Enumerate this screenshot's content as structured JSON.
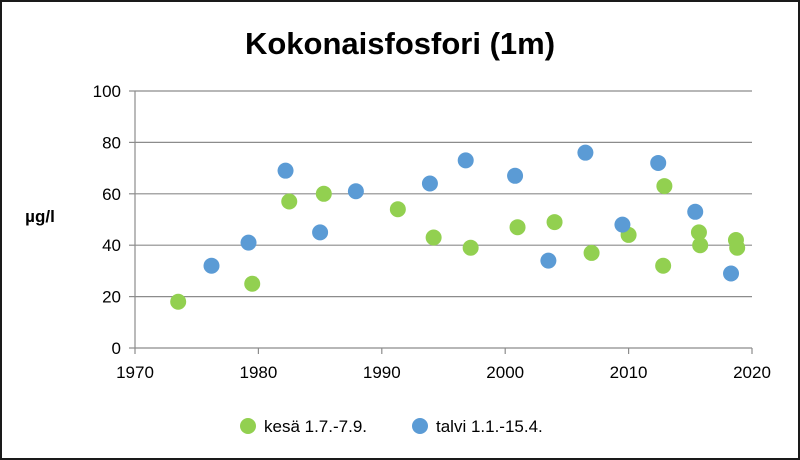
{
  "chart_data": {
    "type": "scatter",
    "title": "Kokonaisfosfori (1m)",
    "xlabel": "",
    "ylabel": "µg/l",
    "xlim": [
      1970,
      2020
    ],
    "ylim": [
      0,
      100
    ],
    "xticks": [
      1970,
      1980,
      1990,
      2000,
      2010,
      2020
    ],
    "yticks": [
      0,
      20,
      40,
      60,
      80,
      100
    ],
    "grid": "horizontal",
    "legend_position": "bottom",
    "series": [
      {
        "name": "kesä 1.7.-7.9.",
        "color": "#92d050",
        "points": [
          [
            1973.5,
            18
          ],
          [
            1979.5,
            25
          ],
          [
            1982.5,
            57
          ],
          [
            1985.3,
            60
          ],
          [
            1991.3,
            54
          ],
          [
            1994.2,
            43
          ],
          [
            1997.2,
            39
          ],
          [
            2001.0,
            47
          ],
          [
            2004.0,
            49
          ],
          [
            2007.0,
            37
          ],
          [
            2010.0,
            44
          ],
          [
            2012.8,
            32
          ],
          [
            2012.9,
            63
          ],
          [
            2015.7,
            45
          ],
          [
            2015.8,
            40
          ],
          [
            2018.7,
            42
          ],
          [
            2018.8,
            39
          ]
        ]
      },
      {
        "name": "talvi 1.1.-15.4.",
        "color": "#5b9bd5",
        "points": [
          [
            1976.2,
            32
          ],
          [
            1979.2,
            41
          ],
          [
            1982.2,
            69
          ],
          [
            1985.0,
            45
          ],
          [
            1987.9,
            61
          ],
          [
            1993.9,
            64
          ],
          [
            1996.8,
            73
          ],
          [
            2000.8,
            67
          ],
          [
            2003.5,
            34
          ],
          [
            2006.5,
            76
          ],
          [
            2009.5,
            48
          ],
          [
            2012.4,
            72
          ],
          [
            2015.4,
            53
          ],
          [
            2018.3,
            29
          ]
        ]
      }
    ]
  }
}
